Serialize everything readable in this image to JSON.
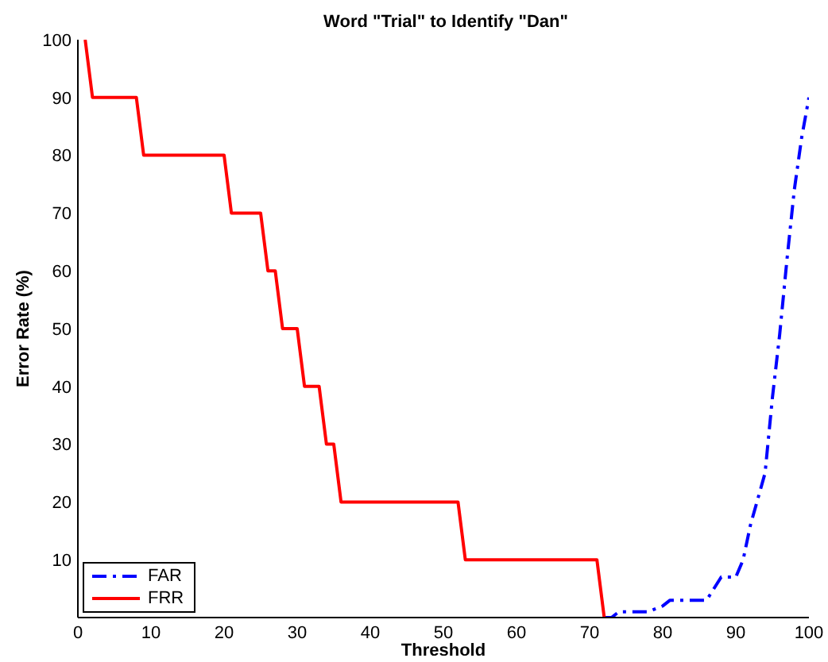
{
  "chart_data": {
    "type": "line",
    "title": "Word \"Trial\" to Identify \"Dan\"",
    "xlabel": "Threshold",
    "ylabel": "Error Rate (%)",
    "xlim": [
      0,
      100
    ],
    "xticks": [
      0,
      10,
      20,
      30,
      40,
      50,
      60,
      70,
      80,
      90,
      100
    ],
    "ylim": [
      0,
      100
    ],
    "yticks": [
      10,
      20,
      30,
      40,
      50,
      60,
      70,
      80,
      90,
      100
    ],
    "grid": false,
    "legend": "bottom left",
    "marker": "none",
    "series": [
      {
        "name": "FAR",
        "color": "#0000ff",
        "line_style": "dashed",
        "x": [
          72,
          73,
          74,
          77,
          78,
          80,
          81,
          86,
          88,
          90,
          91,
          92,
          94,
          95,
          96,
          97,
          98,
          99,
          100
        ],
        "values": [
          0,
          0,
          1,
          1,
          1,
          2,
          3,
          3,
          7,
          7,
          10,
          16,
          25,
          38,
          49,
          62,
          74,
          83,
          90
        ]
      },
      {
        "name": "FRR",
        "color": "#ff0000",
        "line_style": "solid",
        "x": [
          1,
          2,
          8,
          9,
          20,
          21,
          25,
          26,
          27,
          28,
          30,
          31,
          33,
          34,
          35,
          36,
          52,
          53,
          71,
          72
        ],
        "values": [
          100,
          90,
          90,
          80,
          80,
          70,
          70,
          60,
          60,
          50,
          50,
          40,
          40,
          30,
          30,
          20,
          20,
          10,
          10,
          0
        ]
      }
    ]
  }
}
